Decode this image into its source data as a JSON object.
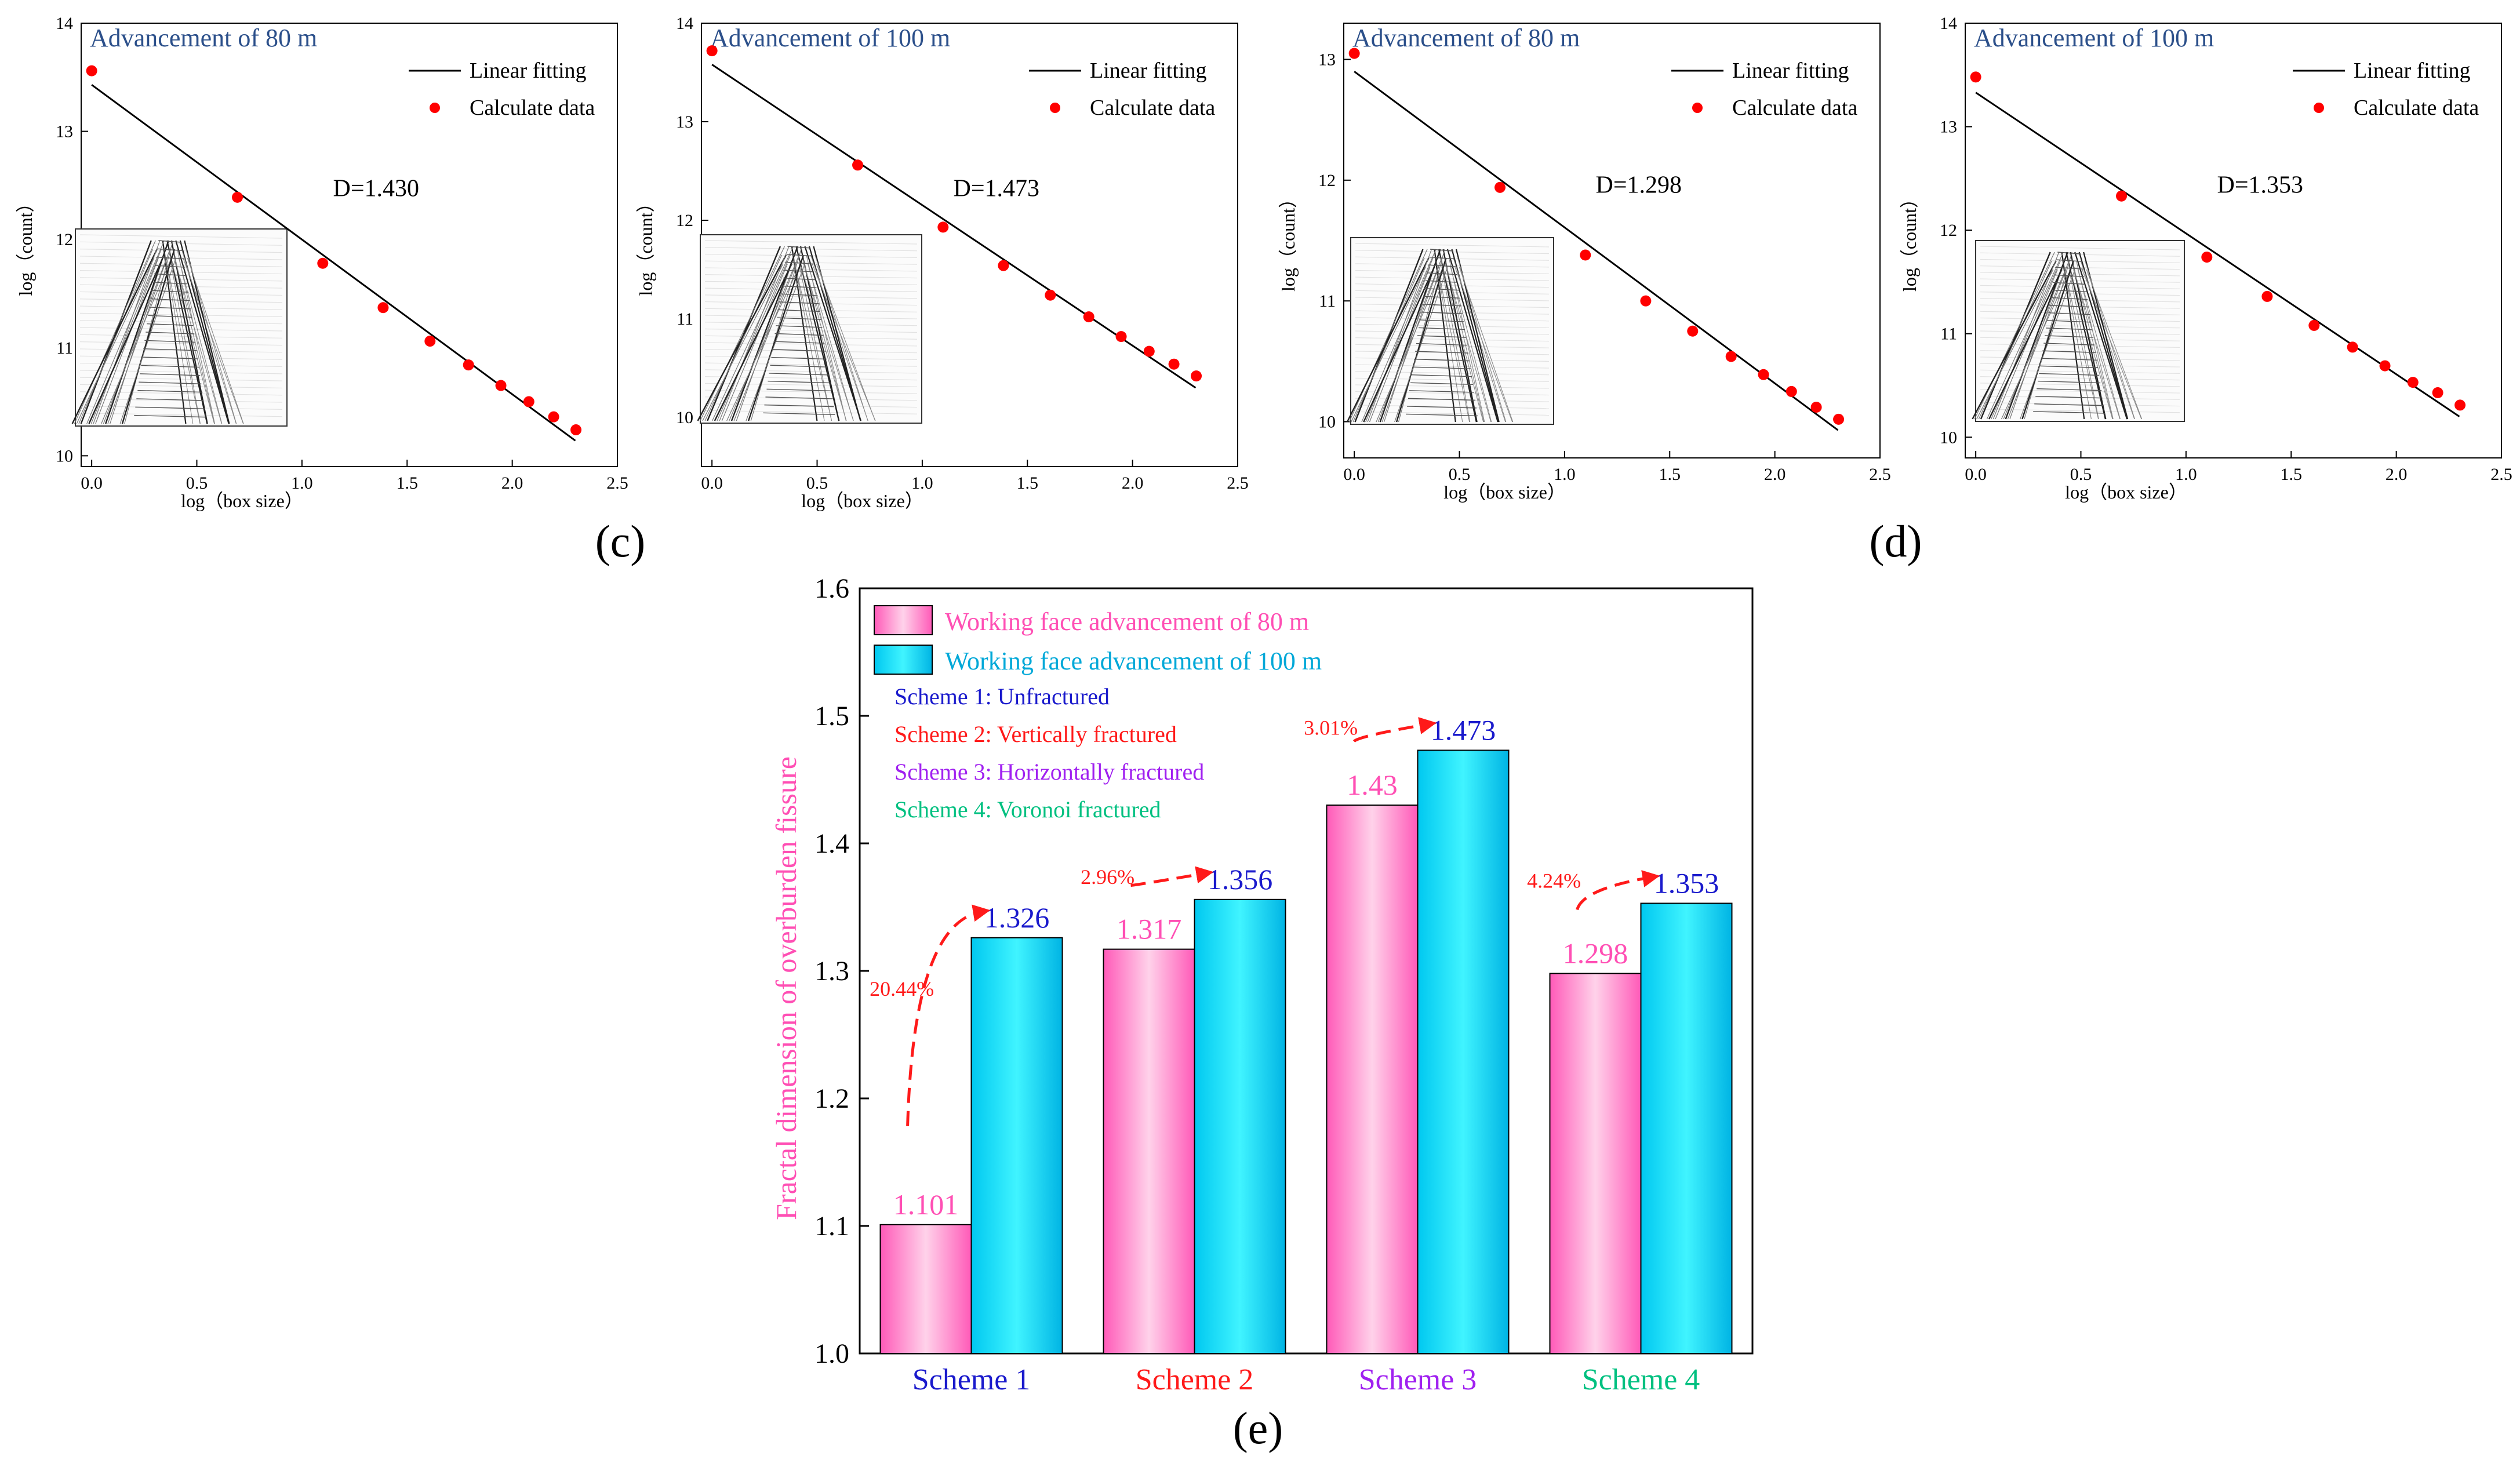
{
  "colors": {
    "pink": "#ff4fb4",
    "pink_light": "#ffc4e2",
    "cyan": "#00e5ff",
    "cyan_dark": "#00a8d8",
    "blue": "#1a1acc",
    "red": "#ff1a1a",
    "purple": "#a020f0",
    "green": "#00c080",
    "title_blue": "#2b4f8a",
    "scatter_red": "#ff0000"
  },
  "panel_labels": {
    "c": "(c)",
    "d": "(d)",
    "e": "(e)"
  },
  "chart_data": [
    {
      "type": "scatter",
      "panel": "c-left",
      "title": "Advancement of 80 m",
      "xlabel": "log（box size）",
      "ylabel": "log（count）",
      "xlim": [
        -0.05,
        2.5
      ],
      "ylim": [
        9.9,
        14.0
      ],
      "xticks": [
        "0.0",
        "0.5",
        "1.0",
        "1.5",
        "2.0",
        "2.5"
      ],
      "yticks": [
        "10",
        "11",
        "12",
        "13",
        "14"
      ],
      "legend": [
        "Linear fitting",
        "Calculate data"
      ],
      "annotation": "D=1.430",
      "fit": {
        "x": [
          0.0,
          2.3
        ],
        "y": [
          13.43,
          10.14
        ]
      },
      "x": [
        0.0,
        0.693,
        1.099,
        1.386,
        1.609,
        1.792,
        1.946,
        2.079,
        2.197,
        2.303
      ],
      "y": [
        13.56,
        12.39,
        11.78,
        11.37,
        11.06,
        10.84,
        10.65,
        10.5,
        10.36,
        10.24
      ]
    },
    {
      "type": "scatter",
      "panel": "c-right",
      "title": "Advancement of 100 m",
      "xlabel": "log（box size）",
      "ylabel": "log（count）",
      "xlim": [
        -0.05,
        2.5
      ],
      "ylim": [
        9.5,
        14.0
      ],
      "xticks": [
        "0.0",
        "0.5",
        "1.0",
        "1.5",
        "2.0",
        "2.5"
      ],
      "yticks": [
        "10",
        "11",
        "12",
        "13",
        "14"
      ],
      "legend": [
        "Linear fitting",
        "Calculate data"
      ],
      "annotation": "D=1.473",
      "fit": {
        "x": [
          0.0,
          2.3
        ],
        "y": [
          13.58,
          10.3
        ]
      },
      "x": [
        0.0,
        0.693,
        1.099,
        1.386,
        1.609,
        1.792,
        1.946,
        2.079,
        2.197,
        2.303
      ],
      "y": [
        13.72,
        12.56,
        11.93,
        11.54,
        11.24,
        11.02,
        10.82,
        10.67,
        10.54,
        10.42
      ]
    },
    {
      "type": "scatter",
      "panel": "d-left",
      "title": "Advancement of 80 m",
      "xlabel": "log（box size）",
      "ylabel": "log（count）",
      "xlim": [
        -0.05,
        2.5
      ],
      "ylim": [
        9.7,
        13.3
      ],
      "xticks": [
        "0.0",
        "0.5",
        "1.0",
        "1.5",
        "2.0",
        "2.5"
      ],
      "yticks": [
        "10",
        "11",
        "12",
        "13"
      ],
      "legend": [
        "Linear fitting",
        "Calculate data"
      ],
      "annotation": "D=1.298",
      "fit": {
        "x": [
          0.0,
          2.3
        ],
        "y": [
          12.9,
          9.93
        ]
      },
      "x": [
        0.0,
        0.693,
        1.099,
        1.386,
        1.609,
        1.792,
        1.946,
        2.079,
        2.197,
        2.303
      ],
      "y": [
        13.05,
        11.94,
        11.38,
        11.0,
        10.75,
        10.54,
        10.39,
        10.25,
        10.12,
        10.02
      ]
    },
    {
      "type": "scatter",
      "panel": "d-right",
      "title": "Advancement of 100 m",
      "xlabel": "log（box size）",
      "ylabel": "log（count）",
      "xlim": [
        -0.05,
        2.5
      ],
      "ylim": [
        9.8,
        14.0
      ],
      "xticks": [
        "0.0",
        "0.5",
        "1.0",
        "1.5",
        "2.0",
        "2.5"
      ],
      "yticks": [
        "10",
        "11",
        "12",
        "13",
        "14"
      ],
      "legend": [
        "Linear fitting",
        "Calculate data"
      ],
      "annotation": "D=1.353",
      "fit": {
        "x": [
          0.0,
          2.3
        ],
        "y": [
          13.33,
          10.2
        ]
      },
      "x": [
        0.0,
        0.693,
        1.099,
        1.386,
        1.609,
        1.792,
        1.946,
        2.079,
        2.197,
        2.303
      ],
      "y": [
        13.48,
        12.33,
        11.74,
        11.36,
        11.08,
        10.87,
        10.69,
        10.53,
        10.43,
        10.31
      ]
    },
    {
      "type": "bar",
      "panel": "e",
      "ylabel": "Fractal dimension of overburden fissure",
      "ylim": [
        1.0,
        1.6
      ],
      "yticks": [
        "1.0",
        "1.1",
        "1.2",
        "1.3",
        "1.4",
        "1.5",
        "1.6"
      ],
      "categories": [
        "Scheme 1",
        "Scheme 2",
        "Scheme 3",
        "Scheme 4"
      ],
      "category_colors": [
        "#1a1acc",
        "#ff1a1a",
        "#a020f0",
        "#00c080"
      ],
      "series": [
        {
          "name": "Working face advancement of 80 m",
          "values": [
            1.101,
            1.317,
            1.43,
            1.298
          ],
          "labels": [
            "1.101",
            "1.317",
            "1.43",
            "1.298"
          ]
        },
        {
          "name": "Working face advancement of 100 m",
          "values": [
            1.326,
            1.356,
            1.473,
            1.353
          ],
          "labels": [
            "1.326",
            "1.356",
            "1.473",
            "1.353"
          ]
        }
      ],
      "scheme_notes": [
        "Scheme 1: Unfractured",
        "Scheme 2: Vertically fractured",
        "Scheme 3: Horizontally fractured",
        "Scheme 4: Voronoi fractured"
      ],
      "growth_labels": [
        "20.44%",
        "2.96%",
        "3.01%",
        "4.24%"
      ]
    }
  ]
}
